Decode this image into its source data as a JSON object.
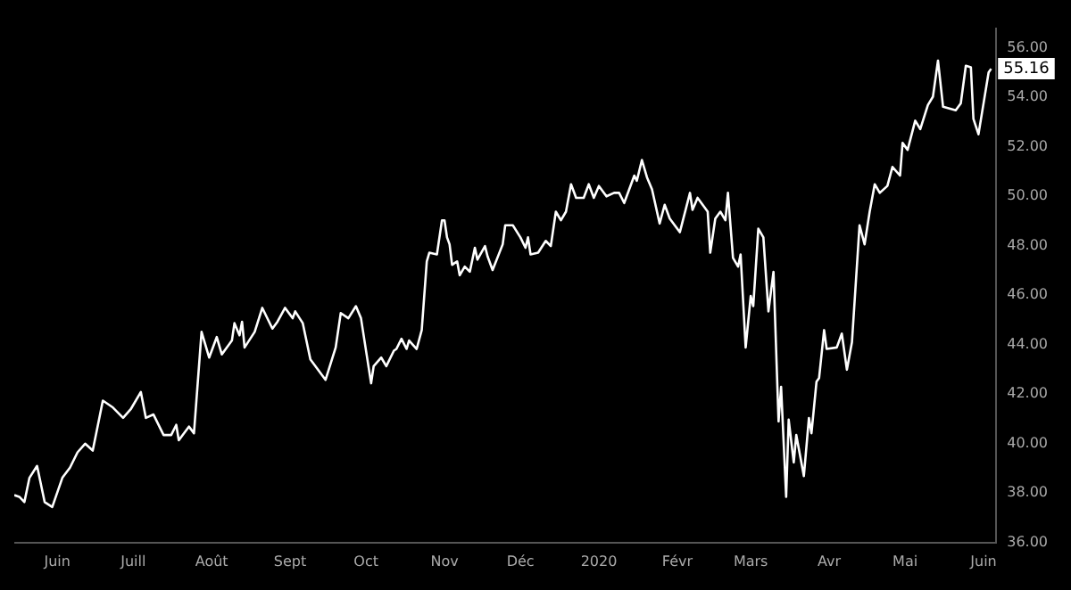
{
  "chart_data": {
    "type": "line",
    "xlim": [
      "2019-05-15",
      "2020-06-06"
    ],
    "xticks": [
      {
        "value": "2019-06-01",
        "label": "Juin"
      },
      {
        "value": "2019-07-01",
        "label": "Juill"
      },
      {
        "value": "2019-08-01",
        "label": "Août"
      },
      {
        "value": "2019-09-01",
        "label": "Sept"
      },
      {
        "value": "2019-10-01",
        "label": "Oct"
      },
      {
        "value": "2019-11-01",
        "label": "Nov"
      },
      {
        "value": "2019-12-01",
        "label": "Déc"
      },
      {
        "value": "2020-01-01",
        "label": "2020"
      },
      {
        "value": "2020-02-01",
        "label": "Févr"
      },
      {
        "value": "2020-03-01",
        "label": "Mars"
      },
      {
        "value": "2020-04-01",
        "label": "Avr"
      },
      {
        "value": "2020-05-01",
        "label": "Mai"
      },
      {
        "value": "2020-06-01",
        "label": "Juin"
      }
    ],
    "ylim": [
      36,
      56.8
    ],
    "yticks": [
      {
        "value": 36,
        "label": "36.00"
      },
      {
        "value": 38,
        "label": "38.00"
      },
      {
        "value": 40,
        "label": "40.00"
      },
      {
        "value": 42,
        "label": "42.00"
      },
      {
        "value": 44,
        "label": "44.00"
      },
      {
        "value": 46,
        "label": "46.00"
      },
      {
        "value": 48,
        "label": "48.00"
      },
      {
        "value": 50,
        "label": "50.00"
      },
      {
        "value": 52,
        "label": "52.00"
      },
      {
        "value": 54,
        "label": "54.00"
      },
      {
        "value": 56,
        "label": "56.00"
      }
    ],
    "grid": false,
    "legend": false,
    "marker": "none",
    "line_style": "solid",
    "annotations": [
      {
        "text": "55.16",
        "x": "2020-06-04",
        "y": 55.16
      }
    ],
    "series": [
      {
        "color": "#ffffff",
        "x": [
          "2019-05-15",
          "2019-05-17",
          "2019-05-19",
          "2019-05-21",
          "2019-05-24",
          "2019-05-27",
          "2019-05-30",
          "2019-06-03",
          "2019-06-06",
          "2019-06-09",
          "2019-06-12",
          "2019-06-15",
          "2019-06-19",
          "2019-06-23",
          "2019-06-27",
          "2019-06-30",
          "2019-07-04",
          "2019-07-06",
          "2019-07-09",
          "2019-07-13",
          "2019-07-16",
          "2019-07-18",
          "2019-07-19",
          "2019-07-23",
          "2019-07-25",
          "2019-07-28",
          "2019-07-31",
          "2019-08-03",
          "2019-08-05",
          "2019-08-09",
          "2019-08-10",
          "2019-08-12",
          "2019-08-13",
          "2019-08-14",
          "2019-08-18",
          "2019-08-21",
          "2019-08-25",
          "2019-08-27",
          "2019-08-30",
          "2019-09-02",
          "2019-09-03",
          "2019-09-06",
          "2019-09-09",
          "2019-09-15",
          "2019-09-19",
          "2019-09-21",
          "2019-09-24",
          "2019-09-27",
          "2019-09-29",
          "2019-10-03",
          "2019-10-04",
          "2019-10-07",
          "2019-10-09",
          "2019-10-12",
          "2019-10-13",
          "2019-10-15",
          "2019-10-17",
          "2019-10-18",
          "2019-10-21",
          "2019-10-23",
          "2019-10-25",
          "2019-10-26",
          "2019-10-29",
          "2019-10-31",
          "2019-11-01",
          "2019-11-02",
          "2019-11-03",
          "2019-11-04",
          "2019-11-06",
          "2019-11-07",
          "2019-11-09",
          "2019-11-11",
          "2019-11-13",
          "2019-11-14",
          "2019-11-17",
          "2019-11-18",
          "2019-11-20",
          "2019-11-24",
          "2019-11-25",
          "2019-11-28",
          "2019-12-01",
          "2019-12-03",
          "2019-12-04",
          "2019-12-05",
          "2019-12-08",
          "2019-12-11",
          "2019-12-13",
          "2019-12-15",
          "2019-12-17",
          "2019-12-19",
          "2019-12-21",
          "2019-12-23",
          "2019-12-26",
          "2019-12-28",
          "2019-12-30",
          "2020-01-01",
          "2020-01-04",
          "2020-01-07",
          "2020-01-09",
          "2020-01-11",
          "2020-01-15",
          "2020-01-16",
          "2020-01-18",
          "2020-01-20",
          "2020-01-22",
          "2020-01-25",
          "2020-01-27",
          "2020-01-29",
          "2020-02-02",
          "2020-02-06",
          "2020-02-07",
          "2020-02-09",
          "2020-02-13",
          "2020-02-14",
          "2020-02-16",
          "2020-02-18",
          "2020-02-20",
          "2020-02-21",
          "2020-02-23",
          "2020-02-25",
          "2020-02-26",
          "2020-02-28",
          "2020-03-01",
          "2020-03-02",
          "2020-03-04",
          "2020-03-06",
          "2020-03-08",
          "2020-03-10",
          "2020-03-12",
          "2020-03-13",
          "2020-03-15",
          "2020-03-16",
          "2020-03-18",
          "2020-03-19",
          "2020-03-22",
          "2020-03-24",
          "2020-03-25",
          "2020-03-27",
          "2020-03-28",
          "2020-03-30",
          "2020-03-31",
          "2020-04-04",
          "2020-04-06",
          "2020-04-08",
          "2020-04-10",
          "2020-04-13",
          "2020-04-15",
          "2020-04-17",
          "2020-04-19",
          "2020-04-21",
          "2020-04-24",
          "2020-04-26",
          "2020-04-29",
          "2020-04-30",
          "2020-05-02",
          "2020-05-05",
          "2020-05-07",
          "2020-05-10",
          "2020-05-12",
          "2020-05-14",
          "2020-05-16",
          "2020-05-21",
          "2020-05-23",
          "2020-05-25",
          "2020-05-27",
          "2020-05-28",
          "2020-05-30",
          "2020-06-03",
          "2020-06-04"
        ],
        "values": [
          37.92,
          37.85,
          37.64,
          38.62,
          39.1,
          37.64,
          37.44,
          38.62,
          39.03,
          39.65,
          40.0,
          39.72,
          41.74,
          41.46,
          41.04,
          41.39,
          42.09,
          41.04,
          41.18,
          40.35,
          40.35,
          40.76,
          40.14,
          40.69,
          40.42,
          44.52,
          43.48,
          44.31,
          43.61,
          44.17,
          44.87,
          44.38,
          44.93,
          43.89,
          44.52,
          45.49,
          44.65,
          44.93,
          45.49,
          45.07,
          45.35,
          44.87,
          43.41,
          42.58,
          43.89,
          45.28,
          45.07,
          45.56,
          45.07,
          42.44,
          43.13,
          43.48,
          43.13,
          43.76,
          43.83,
          44.24,
          43.83,
          44.17,
          43.83,
          44.59,
          47.37,
          47.72,
          47.65,
          49.03,
          49.03,
          48.34,
          48.06,
          47.23,
          47.37,
          46.81,
          47.16,
          46.95,
          47.92,
          47.44,
          47.99,
          47.58,
          47.02,
          48.06,
          48.83,
          48.83,
          48.34,
          47.92,
          48.34,
          47.65,
          47.72,
          48.2,
          47.99,
          49.38,
          49.03,
          49.38,
          50.49,
          49.94,
          49.94,
          50.49,
          49.94,
          50.42,
          50.0,
          50.14,
          50.14,
          49.73,
          50.84,
          50.63,
          51.47,
          50.77,
          50.28,
          48.9,
          49.66,
          49.1,
          48.55,
          50.14,
          49.45,
          49.94,
          49.38,
          47.72,
          49.1,
          49.38,
          49.03,
          50.14,
          47.51,
          47.16,
          47.65,
          43.89,
          45.97,
          45.56,
          48.69,
          48.34,
          45.35,
          46.95,
          40.9,
          42.3,
          37.85,
          40.97,
          39.24,
          40.35,
          38.69,
          41.04,
          40.42,
          42.51,
          42.65,
          44.59,
          43.83,
          43.89,
          44.45,
          42.99,
          44.1,
          48.83,
          48.06,
          49.38,
          50.49,
          50.14,
          50.42,
          51.19,
          50.84,
          52.16,
          51.88,
          53.06,
          52.72,
          53.69,
          54.03,
          55.49,
          53.62,
          53.48,
          53.76,
          55.28,
          55.22,
          53.13,
          52.51,
          55.01,
          55.16
        ]
      }
    ]
  }
}
